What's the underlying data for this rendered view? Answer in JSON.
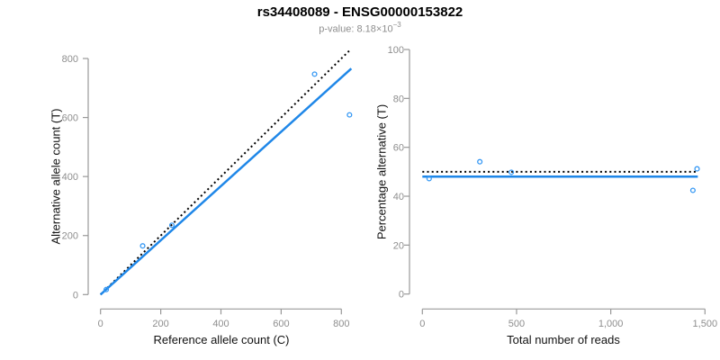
{
  "header": {
    "title": "rs34408089 - ENSG00000153822",
    "pvalue_prefix": "p-value: ",
    "pvalue_mantissa": "8.18",
    "pvalue_base": "×10",
    "pvalue_exponent": "−3"
  },
  "colors": {
    "line_blue": "#1F87E8",
    "point_blue": "#3598F4",
    "dotted_black": "#000000",
    "axis_gray": "#999999",
    "tick_label_gray": "#8e8e8e",
    "title_black": "#000000",
    "subtitle_gray": "#8e8e8e"
  },
  "chart_data": [
    {
      "type": "scatter",
      "panel": "left",
      "xlabel": "Reference allele count (C)",
      "ylabel": "Alternative allele count (T)",
      "xlim": [
        0,
        800
      ],
      "ylim": [
        0,
        800
      ],
      "xticks": [
        0,
        200,
        400,
        600,
        800
      ],
      "xtick_labels": [
        "0",
        "200",
        "400",
        "600",
        "800"
      ],
      "yticks": [
        0,
        200,
        400,
        600,
        800
      ],
      "ytick_labels": [
        "0",
        "200",
        "400",
        "600",
        "800"
      ],
      "grid": false,
      "legend": "none",
      "points": [
        [
          19,
          17
        ],
        [
          140,
          165
        ],
        [
          237,
          235
        ],
        [
          711,
          747
        ],
        [
          827,
          609
        ]
      ],
      "lines": [
        {
          "name": "expected-line",
          "style": "dotted",
          "color": "#000000",
          "from": [
            0,
            0
          ],
          "to": [
            828,
            828
          ]
        },
        {
          "name": "fitted-line",
          "style": "solid",
          "color": "#1F87E8",
          "from": [
            0,
            0
          ],
          "to": [
            833,
            766
          ]
        }
      ]
    },
    {
      "type": "scatter",
      "panel": "right",
      "xlabel": "Total number of reads",
      "ylabel": "Percentage alternative (T)",
      "xlim": [
        0,
        1500
      ],
      "ylim": [
        0,
        100
      ],
      "xticks": [
        0,
        500,
        1000,
        1500
      ],
      "xtick_labels": [
        "0",
        "500",
        "1,000",
        "1,500"
      ],
      "yticks": [
        0,
        20,
        40,
        60,
        80,
        100
      ],
      "ytick_labels": [
        "0",
        "20",
        "40",
        "60",
        "80",
        "100"
      ],
      "grid": false,
      "legend": "none",
      "points": [
        [
          36,
          47.2
        ],
        [
          305,
          54.1
        ],
        [
          472,
          49.8
        ],
        [
          1458,
          51.2
        ],
        [
          1436,
          42.4
        ]
      ],
      "lines": [
        {
          "name": "expected-line",
          "style": "dotted",
          "color": "#000000",
          "from": [
            0,
            50
          ],
          "to": [
            1462,
            50
          ]
        },
        {
          "name": "fitted-line",
          "style": "solid",
          "color": "#1F87E8",
          "from": [
            0,
            48
          ],
          "to": [
            1462,
            48
          ]
        }
      ]
    }
  ]
}
